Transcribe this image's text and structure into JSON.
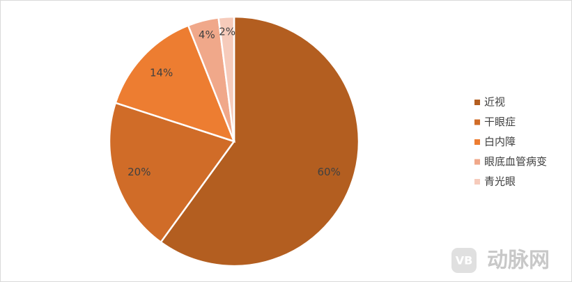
{
  "chart_data": {
    "type": "pie",
    "categories": [
      "近视",
      "干眼症",
      "白内障",
      "眼底血管病变",
      "青光眼"
    ],
    "values": [
      60,
      20,
      14,
      4,
      2
    ],
    "value_labels": [
      "60%",
      "20%",
      "14%",
      "4%",
      "2%"
    ],
    "colors": [
      "#b35e20",
      "#d06c28",
      "#ed7d31",
      "#f0a88a",
      "#f6cbbb"
    ],
    "legend": "right"
  },
  "watermark": "动脉网"
}
